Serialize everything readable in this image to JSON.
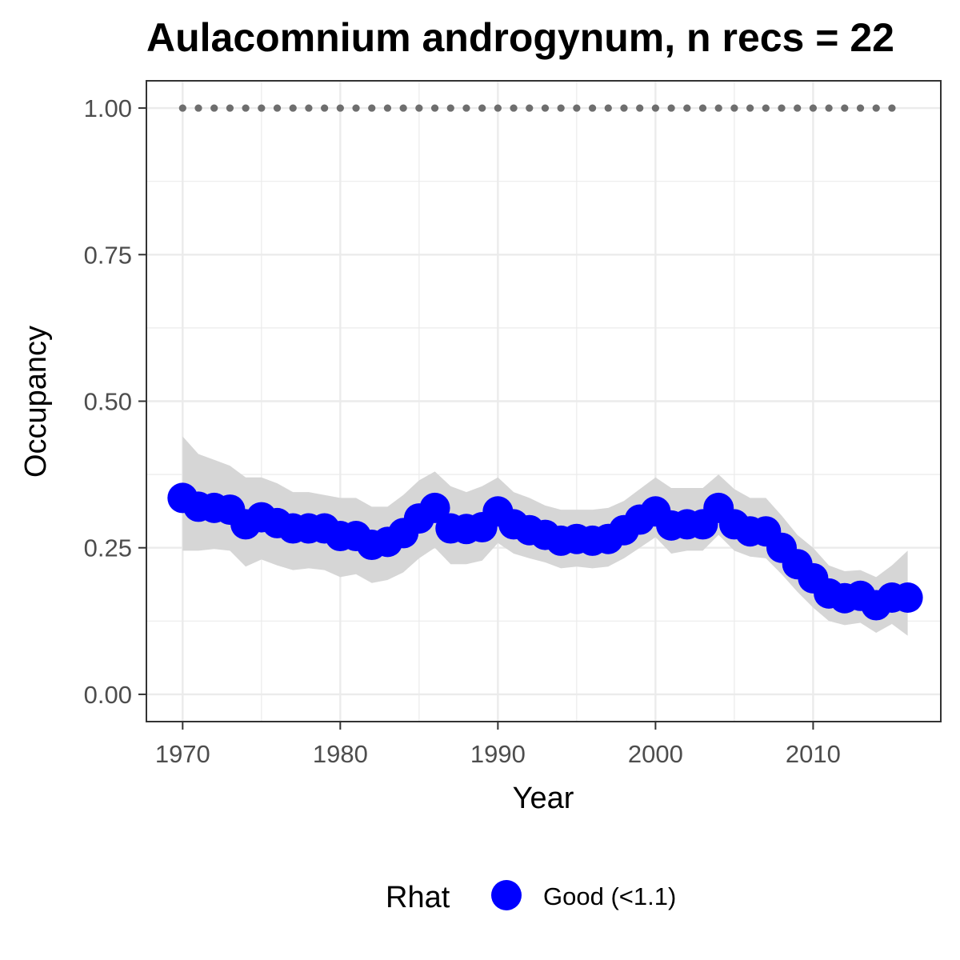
{
  "chart_data": {
    "type": "line",
    "title": "Aulacomnium androgynum, n recs = 22",
    "xlabel": "Year",
    "ylabel": "Occupancy",
    "xlim": [
      1967.7,
      2018.1
    ],
    "ylim": [
      -0.0465,
      1.0465
    ],
    "x_ticks": [
      1970,
      1980,
      1990,
      2000,
      2010
    ],
    "x_tick_labels": [
      "1970",
      "1980",
      "1990",
      "2000",
      "2010"
    ],
    "y_ticks": [
      0,
      0.25,
      0.5,
      0.75,
      1
    ],
    "y_tick_labels": [
      "0.00",
      "0.25",
      "0.50",
      "0.75",
      "1.00"
    ],
    "grid": true,
    "legend": {
      "position": "bottom",
      "title": "Rhat",
      "entries": [
        {
          "label": "Good (<1.1)",
          "color": "#0000ff"
        }
      ]
    },
    "colors": {
      "points": "#0000ff",
      "ribbon": "#d6d6d6",
      "reference_dots": "#6e6e6e",
      "grid": "#ebebeb",
      "panel_border": "#333333"
    },
    "x": [
      1970,
      1971,
      1972,
      1973,
      1974,
      1975,
      1976,
      1977,
      1978,
      1979,
      1980,
      1981,
      1982,
      1983,
      1984,
      1985,
      1986,
      1987,
      1988,
      1989,
      1990,
      1991,
      1992,
      1993,
      1994,
      1995,
      1996,
      1997,
      1998,
      1999,
      2000,
      2001,
      2002,
      2003,
      2004,
      2005,
      2006,
      2007,
      2008,
      2009,
      2010,
      2011,
      2012,
      2013,
      2014,
      2015,
      2016
    ],
    "series": [
      {
        "name": "Good (<1.1)",
        "values": [
          0.335,
          0.32,
          0.318,
          0.315,
          0.29,
          0.302,
          0.292,
          0.283,
          0.283,
          0.283,
          0.27,
          0.27,
          0.255,
          0.26,
          0.275,
          0.3,
          0.318,
          0.283,
          0.282,
          0.285,
          0.312,
          0.29,
          0.28,
          0.272,
          0.262,
          0.265,
          0.262,
          0.265,
          0.28,
          0.298,
          0.312,
          0.288,
          0.29,
          0.29,
          0.318,
          0.29,
          0.278,
          0.278,
          0.25,
          0.222,
          0.198,
          0.172,
          0.164,
          0.168,
          0.152,
          0.165,
          0.165
        ],
        "lower": [
          0.245,
          0.245,
          0.248,
          0.245,
          0.218,
          0.23,
          0.22,
          0.212,
          0.215,
          0.212,
          0.2,
          0.205,
          0.19,
          0.195,
          0.208,
          0.232,
          0.25,
          0.222,
          0.222,
          0.228,
          0.258,
          0.24,
          0.232,
          0.225,
          0.215,
          0.218,
          0.215,
          0.218,
          0.232,
          0.25,
          0.268,
          0.24,
          0.245,
          0.245,
          0.272,
          0.245,
          0.235,
          0.232,
          0.205,
          0.175,
          0.148,
          0.125,
          0.118,
          0.122,
          0.105,
          0.12,
          0.1
        ],
        "upper": [
          0.44,
          0.41,
          0.4,
          0.39,
          0.37,
          0.37,
          0.36,
          0.345,
          0.345,
          0.34,
          0.335,
          0.335,
          0.32,
          0.32,
          0.34,
          0.365,
          0.38,
          0.355,
          0.345,
          0.355,
          0.37,
          0.345,
          0.335,
          0.322,
          0.315,
          0.315,
          0.315,
          0.318,
          0.33,
          0.35,
          0.37,
          0.352,
          0.352,
          0.352,
          0.375,
          0.35,
          0.335,
          0.335,
          0.305,
          0.272,
          0.25,
          0.22,
          0.21,
          0.212,
          0.2,
          0.22,
          0.245
        ]
      }
    ],
    "reference_dots": {
      "y": 1,
      "x_start": 1970,
      "x_end": 2015,
      "step": 1
    }
  }
}
